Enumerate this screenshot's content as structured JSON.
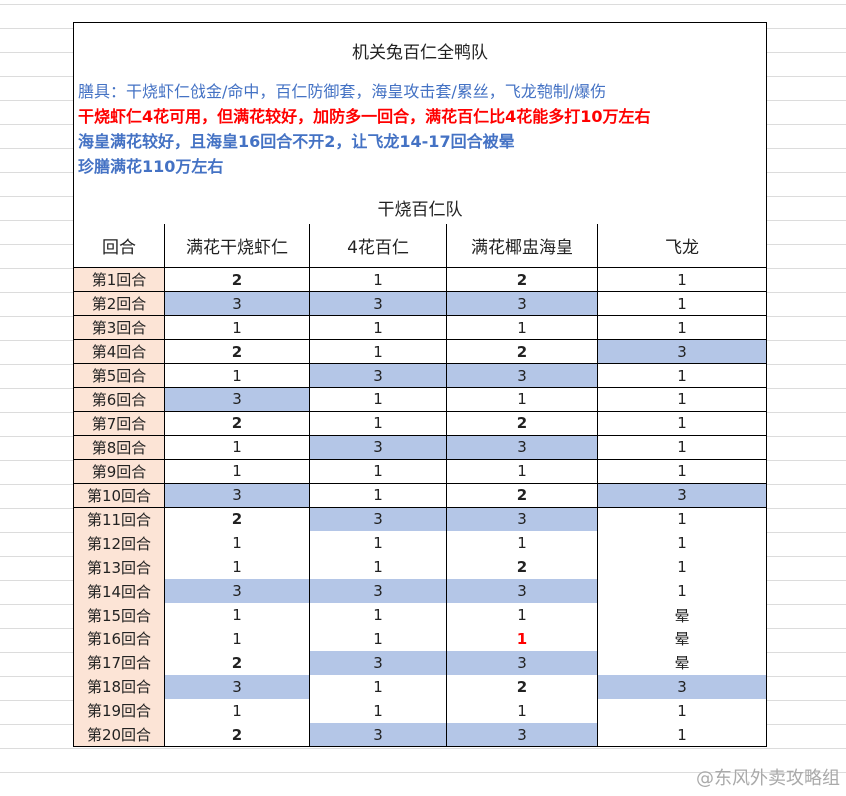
{
  "title": "机关兔百仁全鸭队",
  "notes": [
    "膳具：干烧虾仁戗金/命中，百仁防御套，海皇攻击套/累丝，飞龙匏制/爆伤",
    "干烧虾仁4花可用，但满花较好，加防多一回合，满花百仁比4花能多打10万左右",
    "海皇满花较好，且海皇16回合不开2，让飞龙14-17回合被晕",
    "珍膳满花110万左右"
  ],
  "subtitle": "干烧百仁队",
  "table": {
    "header": [
      "回合",
      "满花干烧虾仁",
      "4花百仁",
      "满花椰盅海皇",
      "飞龙"
    ],
    "styles": {
      "3": {
        "fill": "#b4c6e7"
      },
      "2": {
        "bold": true
      }
    },
    "rows": [
      [
        "第1回合",
        2,
        1,
        2,
        1
      ],
      [
        "第2回合",
        3,
        3,
        3,
        1
      ],
      [
        "第3回合",
        1,
        1,
        1,
        1
      ],
      [
        "第4回合",
        2,
        1,
        2,
        3
      ],
      [
        "第5回合",
        1,
        3,
        3,
        1
      ],
      [
        "第6回合",
        3,
        1,
        1,
        1
      ],
      [
        "第7回合",
        2,
        1,
        2,
        1
      ],
      [
        "第8回合",
        1,
        3,
        3,
        1
      ],
      [
        "第9回合",
        1,
        1,
        1,
        1
      ],
      [
        "第10回合",
        3,
        1,
        2,
        3
      ],
      [
        "第11回合",
        2,
        3,
        3,
        1
      ],
      [
        "第12回合",
        1,
        1,
        1,
        1
      ],
      [
        "第13回合",
        1,
        1,
        2,
        1
      ],
      [
        "第14回合",
        3,
        3,
        3,
        1
      ],
      [
        "第15回合",
        1,
        1,
        1,
        "晕"
      ],
      [
        "第16回合",
        1,
        1,
        {
          "value": 1,
          "color": "#ff0000",
          "bold": true
        },
        "晕"
      ],
      [
        "第17回合",
        2,
        3,
        3,
        "晕"
      ],
      [
        "第18回合",
        3,
        1,
        2,
        3
      ],
      [
        "第19回合",
        1,
        1,
        1,
        1
      ],
      [
        "第20回合",
        2,
        3,
        3,
        1
      ]
    ]
  },
  "watermark": "@东风外卖攻略组"
}
